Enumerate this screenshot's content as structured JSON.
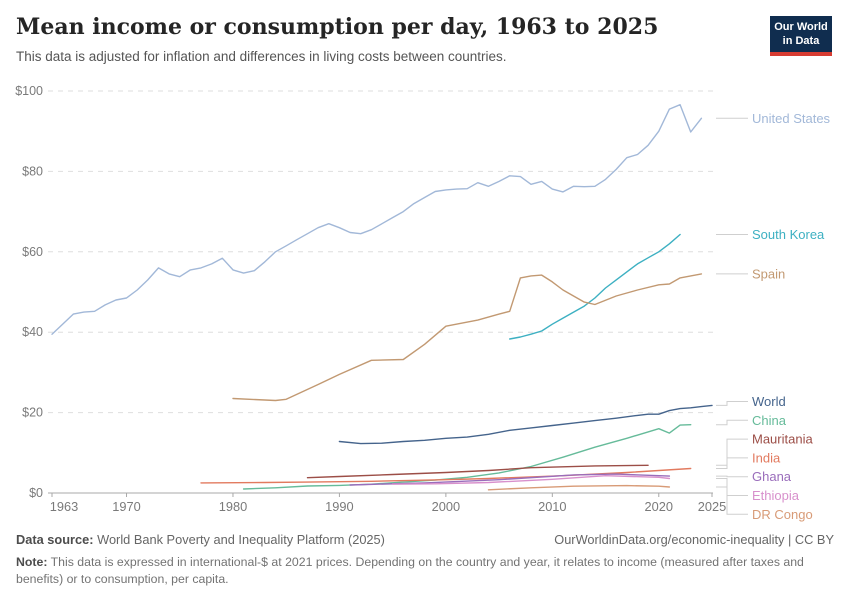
{
  "header": {
    "title": "Mean income or consumption per day, 1963 to 2025",
    "subtitle": "This data is adjusted for inflation and differences in living costs between countries.",
    "logo": {
      "line1": "Our World",
      "line2": "in Data",
      "bg_color": "#102d4f",
      "accent_color": "#d73c32"
    }
  },
  "chart_data": {
    "type": "line",
    "title": "Mean income or consumption per day, 1963 to 2025",
    "xlabel": "",
    "ylabel": "",
    "unit": "international-$ at 2021 prices",
    "xlim": [
      1963,
      2025
    ],
    "ylim": [
      0,
      100
    ],
    "grid": "horizontal dashed",
    "legend_position": "right-edge entity labels",
    "x_ticks": [
      "1963",
      "1970",
      "1980",
      "1990",
      "2000",
      "2010",
      "2020",
      "2025"
    ],
    "y_ticks": [
      "$0",
      "$20",
      "$40",
      "$60",
      "$80",
      "$100"
    ],
    "axis_color": "#a8a8a8",
    "grid_color": "#dedede",
    "tick_text_color": "#7a7a7a",
    "connector_color": "#cfcfcf",
    "series": [
      {
        "name": "United States",
        "color": "#a2b8d8",
        "points": [
          [
            1963,
            39.5
          ],
          [
            1964,
            42
          ],
          [
            1965,
            44.5
          ],
          [
            1966,
            45
          ],
          [
            1967,
            45.2
          ],
          [
            1968,
            46.8
          ],
          [
            1969,
            48
          ],
          [
            1970,
            48.5
          ],
          [
            1971,
            50.5
          ],
          [
            1972,
            53
          ],
          [
            1973,
            56
          ],
          [
            1974,
            54.5
          ],
          [
            1975,
            53.8
          ],
          [
            1976,
            55.5
          ],
          [
            1977,
            56
          ],
          [
            1978,
            57
          ],
          [
            1979,
            58.4
          ],
          [
            1980,
            55.5
          ],
          [
            1981,
            54.7
          ],
          [
            1982,
            55.3
          ],
          [
            1983,
            57.5
          ],
          [
            1984,
            60
          ],
          [
            1985,
            61.5
          ],
          [
            1986,
            63
          ],
          [
            1987,
            64.5
          ],
          [
            1988,
            66
          ],
          [
            1989,
            67
          ],
          [
            1990,
            66
          ],
          [
            1991,
            64.8
          ],
          [
            1992,
            64.5
          ],
          [
            1993,
            65.5
          ],
          [
            1994,
            67
          ],
          [
            1995,
            68.5
          ],
          [
            1996,
            70
          ],
          [
            1997,
            72
          ],
          [
            1998,
            73.5
          ],
          [
            1999,
            75
          ],
          [
            2000,
            75.4
          ],
          [
            2001,
            75.6
          ],
          [
            2002,
            75.7
          ],
          [
            2003,
            77.2
          ],
          [
            2004,
            76.3
          ],
          [
            2005,
            77.5
          ],
          [
            2006,
            78.9
          ],
          [
            2007,
            78.7
          ],
          [
            2008,
            76.8
          ],
          [
            2009,
            77.5
          ],
          [
            2010,
            75.6
          ],
          [
            2011,
            74.9
          ],
          [
            2012,
            76.3
          ],
          [
            2013,
            76.2
          ],
          [
            2014,
            76.3
          ],
          [
            2015,
            78
          ],
          [
            2016,
            80.5
          ],
          [
            2017,
            83.4
          ],
          [
            2018,
            84.2
          ],
          [
            2019,
            86.5
          ],
          [
            2020,
            90
          ],
          [
            2021,
            95.5
          ],
          [
            2022,
            96.6
          ],
          [
            2023,
            89.8
          ],
          [
            2024,
            93.2
          ]
        ]
      },
      {
        "name": "South Korea",
        "color": "#3db0c2",
        "points": [
          [
            2006,
            38.3
          ],
          [
            2007,
            38.8
          ],
          [
            2008,
            39.5
          ],
          [
            2009,
            40.3
          ],
          [
            2010,
            42
          ],
          [
            2011,
            43.5
          ],
          [
            2012,
            45
          ],
          [
            2013,
            46.5
          ],
          [
            2014,
            48.5
          ],
          [
            2015,
            51
          ],
          [
            2016,
            53
          ],
          [
            2017,
            55
          ],
          [
            2018,
            57
          ],
          [
            2019,
            58.5
          ],
          [
            2020,
            60
          ],
          [
            2021,
            62
          ],
          [
            2022,
            64.3
          ]
        ]
      },
      {
        "name": "Spain",
        "color": "#c29972",
        "points": [
          [
            1980,
            23.5
          ],
          [
            1984,
            23
          ],
          [
            1985,
            23.3
          ],
          [
            1988,
            27
          ],
          [
            1990,
            29.5
          ],
          [
            1993,
            33
          ],
          [
            1996,
            33.2
          ],
          [
            1998,
            37
          ],
          [
            2000,
            41.5
          ],
          [
            2003,
            43
          ],
          [
            2005,
            44.5
          ],
          [
            2006,
            45.2
          ],
          [
            2007,
            53.5
          ],
          [
            2008,
            54
          ],
          [
            2009,
            54.2
          ],
          [
            2010,
            52.5
          ],
          [
            2011,
            50.5
          ],
          [
            2013,
            47.5
          ],
          [
            2014,
            46.9
          ],
          [
            2016,
            49
          ],
          [
            2018,
            50.5
          ],
          [
            2020,
            51.8
          ],
          [
            2021,
            52
          ],
          [
            2022,
            53.5
          ],
          [
            2023,
            54
          ],
          [
            2024,
            54.5
          ]
        ]
      },
      {
        "name": "World",
        "color": "#45648c",
        "points": [
          [
            1990,
            12.8
          ],
          [
            1992,
            12.3
          ],
          [
            1994,
            12.4
          ],
          [
            1996,
            12.8
          ],
          [
            1998,
            13.1
          ],
          [
            2000,
            13.6
          ],
          [
            2002,
            13.9
          ],
          [
            2004,
            14.6
          ],
          [
            2006,
            15.6
          ],
          [
            2008,
            16.2
          ],
          [
            2010,
            16.8
          ],
          [
            2012,
            17.4
          ],
          [
            2014,
            18
          ],
          [
            2016,
            18.6
          ],
          [
            2018,
            19.3
          ],
          [
            2019,
            19.6
          ],
          [
            2020,
            19.6
          ],
          [
            2021,
            20.5
          ],
          [
            2022,
            21
          ],
          [
            2023,
            21.2
          ],
          [
            2024,
            21.5
          ],
          [
            2025,
            21.8
          ]
        ]
      },
      {
        "name": "China",
        "color": "#66bb9a",
        "points": [
          [
            1981,
            1
          ],
          [
            1984,
            1.3
          ],
          [
            1987,
            1.75
          ],
          [
            1990,
            1.9
          ],
          [
            1993,
            2.2
          ],
          [
            1996,
            2.7
          ],
          [
            1999,
            3.2
          ],
          [
            2002,
            3.9
          ],
          [
            2005,
            5
          ],
          [
            2008,
            6.6
          ],
          [
            2011,
            8.9
          ],
          [
            2014,
            11.4
          ],
          [
            2017,
            13.6
          ],
          [
            2019,
            15.2
          ],
          [
            2020,
            16
          ],
          [
            2021,
            14.9
          ],
          [
            2022,
            16.9
          ],
          [
            2023,
            17
          ]
        ]
      },
      {
        "name": "Mauritania",
        "color": "#9c4e47",
        "points": [
          [
            1987,
            3.8
          ],
          [
            1990,
            4.1
          ],
          [
            1995,
            4.6
          ],
          [
            2000,
            5.1
          ],
          [
            2004,
            5.6
          ],
          [
            2008,
            6.3
          ],
          [
            2014,
            6.75
          ],
          [
            2019,
            6.9
          ]
        ]
      },
      {
        "name": "India",
        "color": "#e27a5f",
        "points": [
          [
            1977,
            2.5
          ],
          [
            1983,
            2.6
          ],
          [
            1987,
            2.7
          ],
          [
            1993,
            2.9
          ],
          [
            2000,
            3.3
          ],
          [
            2004,
            3.6
          ],
          [
            2011,
            4.3
          ],
          [
            2017,
            5.1
          ],
          [
            2023,
            6.1
          ]
        ]
      },
      {
        "name": "Ghana",
        "color": "#9a6dbb",
        "points": [
          [
            1991,
            2
          ],
          [
            1998,
            2.5
          ],
          [
            2005,
            3.3
          ],
          [
            2012,
            4.5
          ],
          [
            2016,
            4.7
          ],
          [
            2021,
            4.2
          ]
        ]
      },
      {
        "name": "Ethiopia",
        "color": "#d890cc",
        "points": [
          [
            1995,
            2.2
          ],
          [
            1999,
            2.3
          ],
          [
            2004,
            2.6
          ],
          [
            2010,
            3.4
          ],
          [
            2015,
            4.3
          ],
          [
            2020,
            3.9
          ],
          [
            2021,
            3.6
          ]
        ]
      },
      {
        "name": "DR Congo",
        "color": "#d89b77",
        "points": [
          [
            2004,
            0.8
          ],
          [
            2008,
            1.3
          ],
          [
            2012,
            1.7
          ],
          [
            2015,
            1.8
          ],
          [
            2017,
            1.85
          ],
          [
            2020,
            1.7
          ],
          [
            2021,
            1.5
          ]
        ]
      }
    ]
  },
  "footer": {
    "source_label": "Data source:",
    "source": "World Bank Poverty and Inequality Platform (2025)",
    "credit": "OurWorldinData.org/economic-inequality | CC BY",
    "note_label": "Note:",
    "note": "This data is expressed in international-$ at 2021 prices. Depending on the country and year, it relates to income (measured after taxes and benefits) or to consumption, per capita."
  }
}
